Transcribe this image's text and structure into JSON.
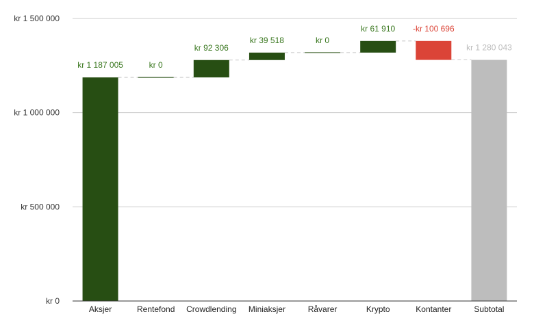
{
  "chart_data": {
    "type": "waterfall",
    "title": "",
    "xlabel": "",
    "ylabel": "",
    "ylim": [
      0,
      1500000
    ],
    "y_ticks": [
      {
        "value": 0,
        "label": "kr   0"
      },
      {
        "value": 500000,
        "label": "kr  500 000"
      },
      {
        "value": 1000000,
        "label": "kr 1 000 000"
      },
      {
        "value": 1500000,
        "label": "kr 1 500 000"
      }
    ],
    "grid": true,
    "legend": "none",
    "categories": [
      "Aksjer",
      "Rentefond",
      "Crowdlending",
      "Miniaksjer",
      "Råvarer",
      "Krypto",
      "Kontanter",
      "Subtotal"
    ],
    "values": [
      1187005,
      0,
      92306,
      39518,
      0,
      61910,
      -100696,
      1280043
    ],
    "kinds": [
      "increase",
      "increase",
      "increase",
      "increase",
      "increase",
      "increase",
      "decrease",
      "total"
    ],
    "data_labels": [
      "kr 1 187 005",
      "kr   0",
      "kr  92 306",
      "kr  39 518",
      "kr   0",
      "kr  61 910",
      "-kr  100 696",
      "kr 1 280 043"
    ],
    "colors": {
      "increase": "#274e13",
      "decrease": "#db4437",
      "total": "#bdbdbd",
      "increase_label": "#38761d",
      "decrease_label": "#db4437",
      "total_label": "#bdbdbd",
      "grid": "#cccccc",
      "axis": "#333333",
      "connector": "#c8c8c8"
    }
  }
}
